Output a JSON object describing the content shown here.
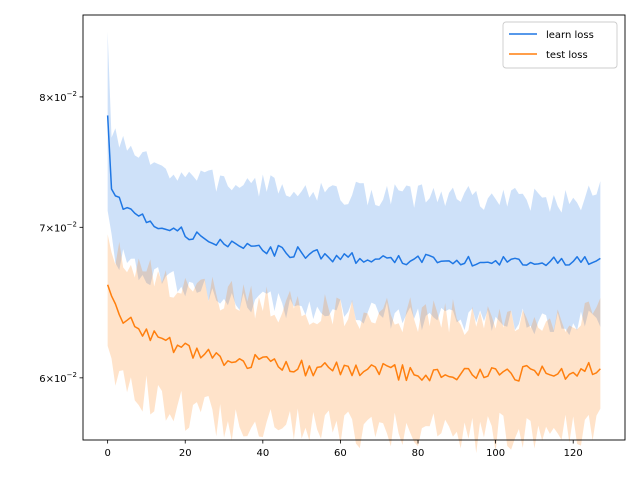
{
  "chart_data": {
    "type": "line",
    "title": "",
    "xlabel": "",
    "ylabel": "",
    "xlim": [
      -6.35,
      133.35
    ],
    "ylim": [
      0.0563,
      0.087
    ],
    "yscale": "log",
    "grid": false,
    "legend_position": "top-right",
    "x_ticks": [
      0,
      20,
      40,
      60,
      80,
      100,
      120
    ],
    "x_tick_labels": [
      "0",
      "20",
      "40",
      "60",
      "80",
      "100",
      "120"
    ],
    "y_ticks": [
      0.06,
      0.07,
      0.08
    ],
    "y_tick_labels": [
      {
        "mantissa": "6",
        "base": "10",
        "exponent": "−2"
      },
      {
        "mantissa": "7",
        "base": "10",
        "exponent": "−2"
      },
      {
        "mantissa": "8",
        "base": "10",
        "exponent": "−2"
      }
    ],
    "series": [
      {
        "name": "learn loss",
        "color": "#1f77e4",
        "band_color": "#cce3fb",
        "knots_x": [
          0,
          1,
          2,
          3,
          5,
          10,
          15,
          20,
          25,
          30,
          40,
          50,
          60,
          70,
          80,
          90,
          100,
          110,
          120,
          127
        ],
        "knots_y": [
          0.0785,
          0.0728,
          0.0722,
          0.0719,
          0.0714,
          0.0706,
          0.07,
          0.0696,
          0.0692,
          0.0688,
          0.0684,
          0.0682,
          0.0679,
          0.0678,
          0.0677,
          0.0677,
          0.0676,
          0.0676,
          0.0675,
          0.0678
        ],
        "upper_knots_x": [
          0,
          1,
          3,
          5,
          10,
          15,
          20,
          30,
          40,
          50,
          60,
          70,
          80,
          90,
          100,
          110,
          120,
          127
        ],
        "upper_knots_y": [
          0.0855,
          0.0772,
          0.0762,
          0.0758,
          0.0748,
          0.0743,
          0.0738,
          0.0733,
          0.073,
          0.0728,
          0.0725,
          0.0724,
          0.0723,
          0.0722,
          0.0721,
          0.072,
          0.0719,
          0.0725
        ],
        "lower_knots_x": [
          0,
          1,
          3,
          5,
          10,
          15,
          20,
          30,
          40,
          50,
          60,
          70,
          80,
          90,
          100,
          110,
          120,
          127
        ],
        "lower_knots_y": [
          0.0712,
          0.0688,
          0.0678,
          0.0674,
          0.0668,
          0.0662,
          0.0658,
          0.0652,
          0.0648,
          0.0645,
          0.0642,
          0.064,
          0.0639,
          0.0638,
          0.0637,
          0.0636,
          0.0635,
          0.0637
        ],
        "noise": 0.0004,
        "band_noise": 0.0009,
        "seed": 7
      },
      {
        "name": "test loss",
        "color": "#ff7f0e",
        "band_color": "#ffdfc4",
        "knots_x": [
          0,
          2,
          5,
          10,
          15,
          20,
          25,
          30,
          40,
          50,
          60,
          70,
          80,
          90,
          100,
          110,
          120,
          127
        ],
        "knots_y": [
          0.066,
          0.0645,
          0.0635,
          0.0628,
          0.0622,
          0.0617,
          0.0614,
          0.0612,
          0.0609,
          0.0606,
          0.0605,
          0.0604,
          0.0603,
          0.0603,
          0.0603,
          0.0603,
          0.0602,
          0.0607
        ],
        "upper_knots_x": [
          0,
          2,
          5,
          10,
          15,
          20,
          30,
          40,
          50,
          60,
          70,
          80,
          90,
          100,
          110,
          120,
          127
        ],
        "upper_knots_y": [
          0.0695,
          0.0682,
          0.0673,
          0.0667,
          0.0661,
          0.0657,
          0.0652,
          0.0648,
          0.0645,
          0.0643,
          0.0641,
          0.064,
          0.0639,
          0.0638,
          0.0637,
          0.0637,
          0.064
        ],
        "lower_knots_x": [
          0,
          2,
          5,
          10,
          15,
          20,
          30,
          40,
          50,
          60,
          70,
          80,
          90,
          100,
          110,
          120,
          127
        ],
        "lower_knots_y": [
          0.062,
          0.0606,
          0.0597,
          0.059,
          0.0585,
          0.058,
          0.0575,
          0.0572,
          0.057,
          0.0569,
          0.0568,
          0.0567,
          0.0567,
          0.0567,
          0.0567,
          0.0566,
          0.0575
        ],
        "noise": 0.0005,
        "band_noise": 0.0012,
        "seed": 13
      }
    ]
  }
}
